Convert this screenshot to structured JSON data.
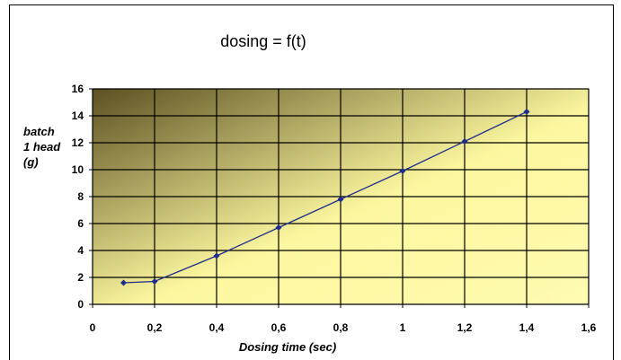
{
  "chart_data": {
    "type": "line",
    "title": "dosing = f(t)",
    "xlabel": "Dosing time (sec)",
    "ylabel_lines": [
      "batch",
      "1 head",
      "(g)"
    ],
    "xlim": [
      0,
      1.6
    ],
    "ylim": [
      0,
      16
    ],
    "x_ticks": [
      0,
      0.2,
      0.4,
      0.6,
      0.8,
      1,
      1.2,
      1.4,
      1.6
    ],
    "x_tick_labels": [
      "0",
      "0,2",
      "0,4",
      "0,6",
      "0,8",
      "1",
      "1,2",
      "1,4",
      "1,6"
    ],
    "y_ticks": [
      0,
      2,
      4,
      6,
      8,
      10,
      12,
      14,
      16
    ],
    "y_tick_labels": [
      "0",
      "2",
      "4",
      "6",
      "8",
      "10",
      "12",
      "14",
      "16"
    ],
    "grid": true,
    "series": [
      {
        "x": [
          0.1,
          0.2,
          0.4,
          0.6,
          0.8,
          1.0,
          1.2,
          1.4
        ],
        "y": [
          1.6,
          1.7,
          3.6,
          5.7,
          7.8,
          9.9,
          12.1,
          14.3
        ],
        "color": "#1f2d8a"
      }
    ],
    "plot_gradient": [
      "#5b5122",
      "#fffbb0"
    ]
  }
}
